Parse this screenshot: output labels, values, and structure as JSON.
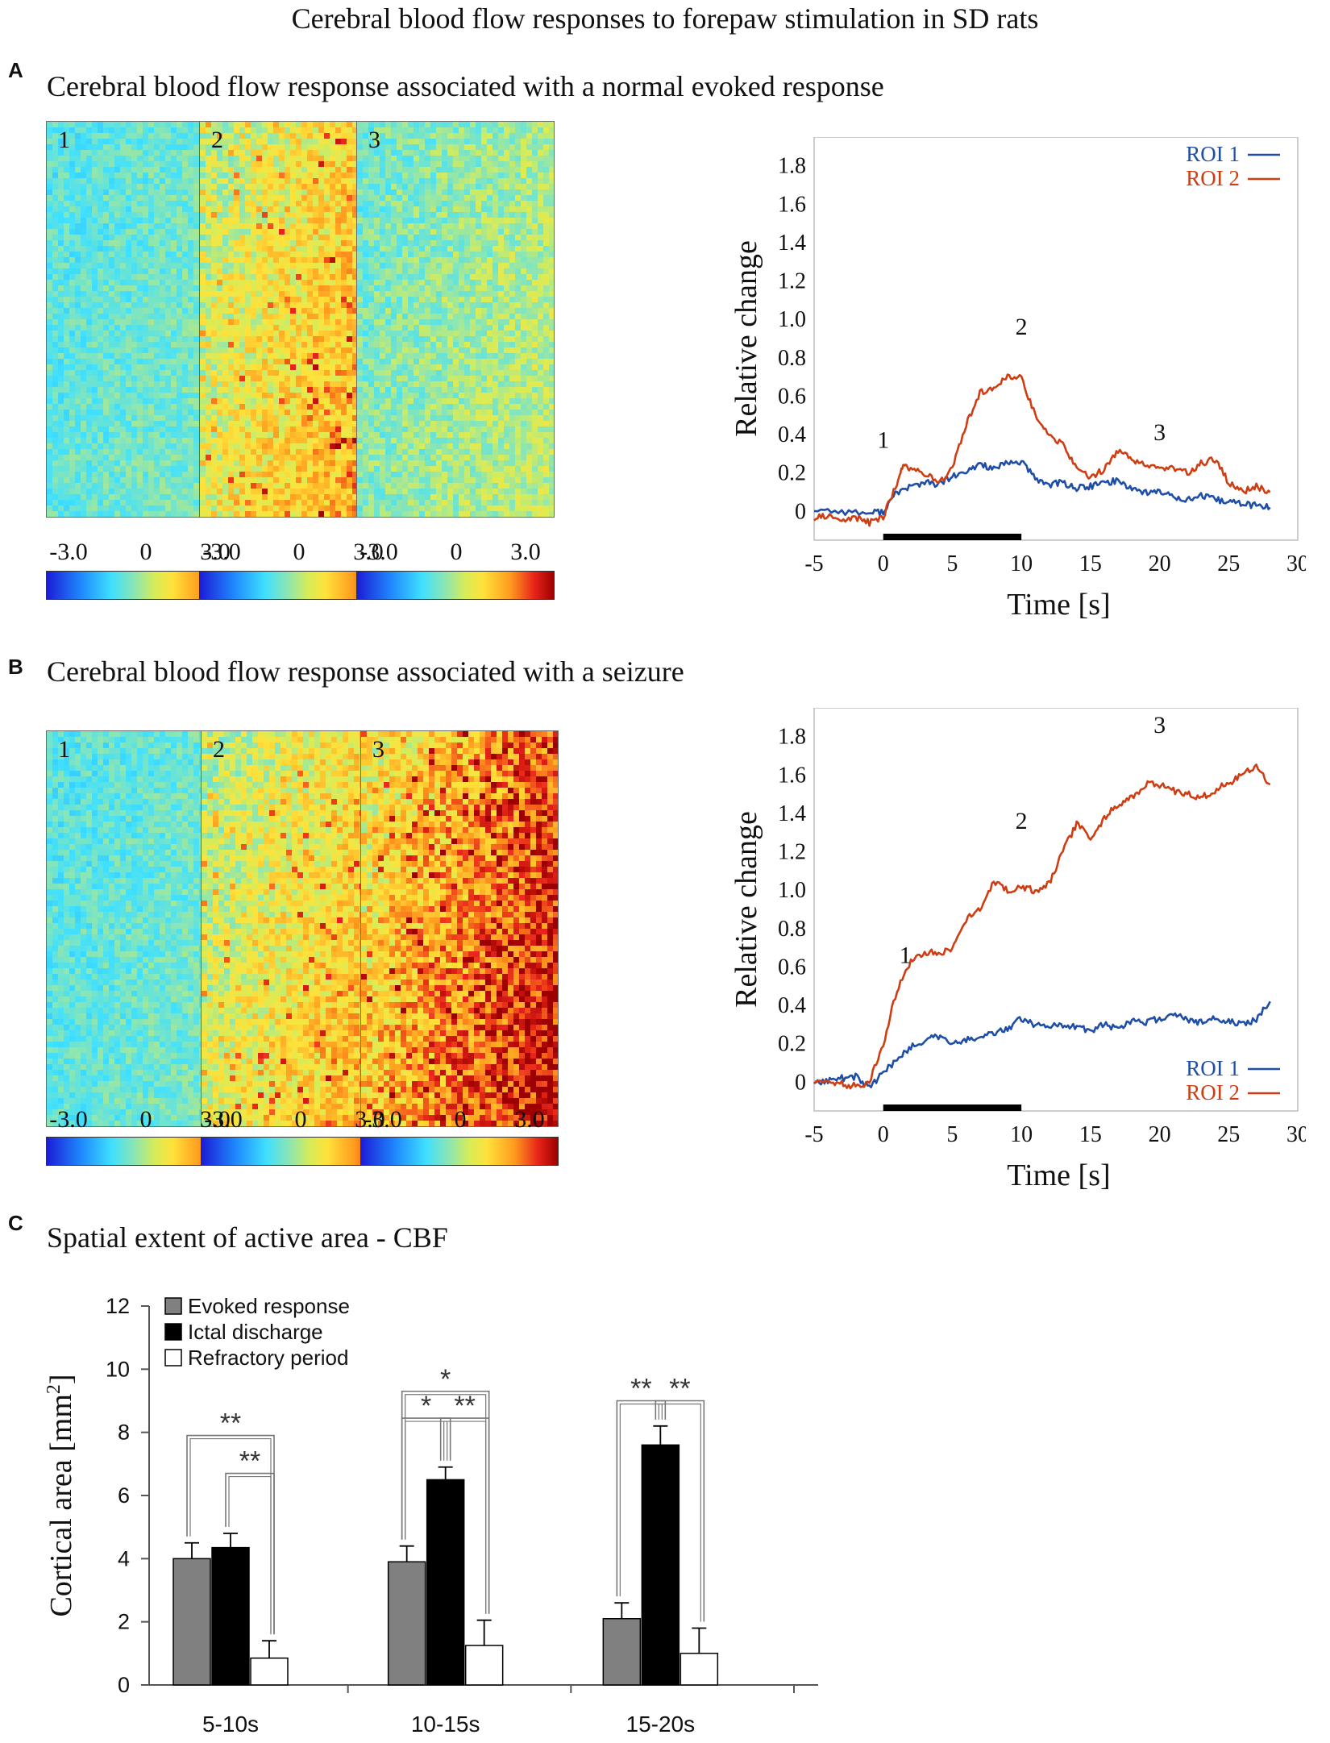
{
  "figure": {
    "title": "Cerebral blood flow responses to forepaw stimulation  in SD rats",
    "colors": {
      "roi1": "#1f4ea8",
      "roi2": "#cf3d12",
      "evoked": "#808080",
      "ictal": "#000000",
      "refractory": "#ffffff"
    }
  },
  "panels": {
    "a": {
      "letter": "A",
      "title": "Cerebral blood flow response associated with  a normal evoked response",
      "maps": [
        {
          "label": "1",
          "intensity": 0.15
        },
        {
          "label": "2",
          "intensity": 0.62
        },
        {
          "label": "3",
          "intensity": 0.28
        }
      ],
      "colorbar_ticks": [
        "-3.0",
        "0",
        "3.0"
      ]
    },
    "b": {
      "letter": "B",
      "title": "Cerebral blood flow response associated with  a seizure",
      "maps": [
        {
          "label": "1",
          "intensity": 0.14
        },
        {
          "label": "2",
          "intensity": 0.58
        },
        {
          "label": "3",
          "intensity": 0.88
        }
      ],
      "colorbar_ticks": [
        "-3.0",
        "0",
        "3.0"
      ]
    },
    "c": {
      "letter": "C",
      "title": "Spatial extent of active area - CBF"
    }
  },
  "chart_data": [
    {
      "id": "line-a",
      "type": "line",
      "xlabel": "Time [s]",
      "ylabel": "Relative change",
      "xlim": [
        -5,
        30
      ],
      "ylim": [
        -0.15,
        1.95
      ],
      "xticks": [
        -5,
        0,
        5,
        10,
        15,
        20,
        25,
        30
      ],
      "yticks": [
        0,
        0.2,
        0.4,
        0.6,
        0.8,
        1.0,
        1.2,
        1.4,
        1.6,
        1.8
      ],
      "ytick_labels": [
        "0",
        "0.2",
        "0.4",
        "0.6",
        "0.8",
        "1.0",
        "1.2",
        "1.4",
        "1.6",
        "1.8"
      ],
      "legend": [
        "ROI 1",
        "ROI 2"
      ],
      "legend_position": "top-right",
      "stimulus_bar": [
        0,
        10
      ],
      "annotations": [
        {
          "text": "1",
          "x": 0,
          "y": 0.33
        },
        {
          "text": "2",
          "x": 10,
          "y": 0.92
        },
        {
          "text": "3",
          "x": 20,
          "y": 0.37
        }
      ],
      "series": [
        {
          "name": "ROI 1",
          "x": [
            -5,
            -3,
            -1,
            0,
            1,
            2,
            3,
            4,
            5,
            6,
            7,
            8,
            9,
            10,
            11,
            12,
            13,
            14,
            15,
            16,
            17,
            18,
            19,
            20,
            21,
            22,
            23,
            24,
            25,
            26,
            27,
            28
          ],
          "y": [
            0.01,
            0.0,
            -0.01,
            0.0,
            0.1,
            0.13,
            0.15,
            0.14,
            0.18,
            0.2,
            0.25,
            0.22,
            0.25,
            0.26,
            0.17,
            0.14,
            0.15,
            0.12,
            0.13,
            0.15,
            0.16,
            0.12,
            0.1,
            0.1,
            0.08,
            0.06,
            0.08,
            0.06,
            0.05,
            0.04,
            0.03,
            0.02
          ]
        },
        {
          "name": "ROI 2",
          "x": [
            -5,
            -4,
            -3,
            -2,
            -1,
            0,
            1,
            1.5,
            2,
            3,
            4,
            5,
            6,
            7,
            8,
            9,
            10,
            11,
            12,
            13,
            14,
            15,
            16,
            17,
            18,
            19,
            20,
            21,
            22,
            23,
            24,
            25,
            26,
            27,
            28
          ],
          "y": [
            -0.04,
            -0.02,
            -0.05,
            -0.03,
            -0.06,
            -0.03,
            0.15,
            0.25,
            0.22,
            0.2,
            0.15,
            0.22,
            0.45,
            0.62,
            0.65,
            0.7,
            0.7,
            0.5,
            0.4,
            0.35,
            0.22,
            0.18,
            0.22,
            0.32,
            0.27,
            0.25,
            0.23,
            0.22,
            0.2,
            0.25,
            0.27,
            0.15,
            0.1,
            0.13,
            0.1
          ]
        }
      ]
    },
    {
      "id": "line-b",
      "type": "line",
      "xlabel": "Time [s]",
      "ylabel": "Relative change",
      "xlim": [
        -5,
        30
      ],
      "ylim": [
        -0.15,
        1.95
      ],
      "xticks": [
        -5,
        0,
        5,
        10,
        15,
        20,
        25,
        30
      ],
      "yticks": [
        0,
        0.2,
        0.4,
        0.6,
        0.8,
        1.0,
        1.2,
        1.4,
        1.6,
        1.8
      ],
      "ytick_labels": [
        "0",
        "0.2",
        "0.4",
        "0.6",
        "0.8",
        "1.0",
        "1.2",
        "1.4",
        "1.6",
        "1.8"
      ],
      "legend": [
        "ROI 1",
        "ROI 2"
      ],
      "legend_position": "bottom-right",
      "stimulus_bar": [
        0,
        10
      ],
      "annotations": [
        {
          "text": "1",
          "x": 1.6,
          "y": 0.62
        },
        {
          "text": "2",
          "x": 10,
          "y": 1.32
        },
        {
          "text": "3",
          "x": 20,
          "y": 1.82
        }
      ],
      "series": [
        {
          "name": "ROI 1",
          "x": [
            -5,
            -4,
            -3,
            -2,
            -1,
            0,
            1,
            2,
            3,
            4,
            5,
            6,
            7,
            8,
            9,
            10,
            11,
            12,
            13,
            14,
            15,
            16,
            17,
            18,
            19,
            20,
            21,
            22,
            23,
            24,
            25,
            26,
            27,
            28
          ],
          "y": [
            0.0,
            0.01,
            0.02,
            0.03,
            -0.03,
            0.05,
            0.12,
            0.18,
            0.22,
            0.24,
            0.2,
            0.22,
            0.23,
            0.26,
            0.28,
            0.33,
            0.3,
            0.29,
            0.3,
            0.29,
            0.27,
            0.3,
            0.28,
            0.32,
            0.31,
            0.33,
            0.35,
            0.33,
            0.31,
            0.33,
            0.32,
            0.3,
            0.33,
            0.42
          ]
        },
        {
          "name": "ROI 2",
          "x": [
            -5,
            -4,
            -3,
            -2,
            -1,
            0,
            1,
            2,
            3,
            4,
            5,
            6,
            7,
            8,
            9,
            10,
            11,
            12,
            13,
            14,
            15,
            16,
            17,
            18,
            19,
            20,
            21,
            22,
            23,
            24,
            25,
            26,
            27,
            28
          ],
          "y": [
            0.0,
            0.0,
            -0.01,
            -0.02,
            0.0,
            0.2,
            0.48,
            0.63,
            0.68,
            0.67,
            0.7,
            0.85,
            0.9,
            1.05,
            1.0,
            1.01,
            1.0,
            1.03,
            1.2,
            1.35,
            1.26,
            1.38,
            1.45,
            1.48,
            1.55,
            1.55,
            1.52,
            1.5,
            1.48,
            1.52,
            1.56,
            1.6,
            1.65,
            1.55
          ]
        }
      ]
    },
    {
      "id": "bar-c",
      "type": "bar",
      "title": "Spatial extent of active area - CBF",
      "ylabel": "Cortical area [mm",
      "ylabel_sup": "2",
      "ylabel_end": "]",
      "xlabel": "",
      "ylim": [
        0,
        12
      ],
      "yticks": [
        0,
        2,
        4,
        6,
        8,
        10,
        12
      ],
      "categories": [
        "5-10s",
        "10-15s",
        "15-20s"
      ],
      "legend_position": "top-left",
      "series": [
        {
          "name": "Evoked response",
          "color": "#808080",
          "values": [
            4.0,
            3.9,
            2.1
          ],
          "errors": [
            0.5,
            0.5,
            0.5
          ]
        },
        {
          "name": "Ictal discharge",
          "color": "#000000",
          "values": [
            4.35,
            6.5,
            7.6
          ],
          "errors": [
            0.45,
            0.4,
            0.6
          ]
        },
        {
          "name": "Refractory period",
          "color": "#ffffff",
          "values": [
            0.85,
            1.25,
            1.0
          ],
          "errors": [
            0.55,
            0.8,
            0.8
          ]
        }
      ],
      "significance": [
        {
          "group": 0,
          "from": 0,
          "to": 2,
          "label": "**",
          "level": 7.9
        },
        {
          "group": 0,
          "from": 1,
          "to": 2,
          "label": "**",
          "level": 6.7
        },
        {
          "group": 1,
          "from": 0,
          "to": 2,
          "label": "*",
          "level": 9.3
        },
        {
          "group": 1,
          "from": 0,
          "to": 1,
          "label": "*",
          "level": 8.45
        },
        {
          "group": 1,
          "from": 1,
          "to": 2,
          "label": "**",
          "level": 8.45
        },
        {
          "group": 2,
          "from": 0,
          "to": 1,
          "label": "**",
          "level": 9.0
        },
        {
          "group": 2,
          "from": 1,
          "to": 2,
          "label": "**",
          "level": 9.0
        }
      ]
    }
  ]
}
